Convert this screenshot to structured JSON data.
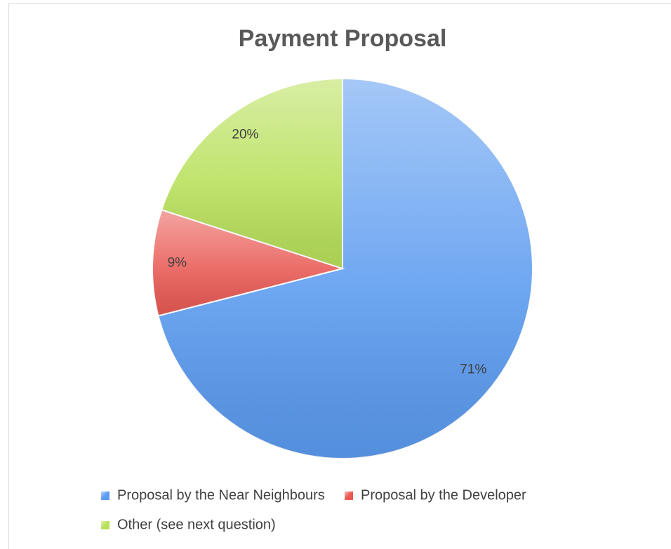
{
  "chart_data": {
    "type": "pie",
    "title": "Payment Proposal",
    "categories": [
      "Proposal by the Near Neighbours",
      "Proposal by the Developer",
      "Other (see next question)"
    ],
    "values": [
      71,
      9,
      20
    ],
    "value_labels": [
      "71%",
      "9%",
      "20%"
    ],
    "colors": [
      "#5b9bf0",
      "#e95a55",
      "#b8e05a"
    ],
    "legend": "bottom"
  }
}
